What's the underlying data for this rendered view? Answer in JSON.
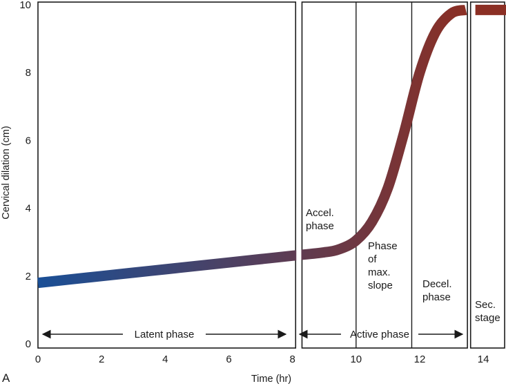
{
  "chart_data": {
    "type": "line",
    "title": "",
    "xlabel": "Time (hr)",
    "ylabel": "Cervical dilation (cm)",
    "panel_label": "A",
    "xlim": [
      0,
      14.8
    ],
    "ylim": [
      0,
      10
    ],
    "x_ticks": [
      0,
      2,
      4,
      6,
      8,
      10,
      12,
      14
    ],
    "y_ticks": [
      0,
      2,
      4,
      6,
      8,
      10
    ],
    "grid": false,
    "series": [
      {
        "x": [
          0,
          1,
          2,
          3,
          4,
          5,
          6,
          7,
          8,
          9,
          9.5,
          10,
          10.5,
          11,
          11.5,
          12,
          12.5,
          13,
          13.45
        ],
        "values": [
          1.8,
          1.9,
          2.0,
          2.1,
          2.2,
          2.3,
          2.4,
          2.5,
          2.6,
          2.7,
          2.8,
          3.05,
          3.6,
          4.6,
          6.2,
          8.0,
          9.2,
          9.75,
          9.85
        ],
        "color_start": "#1a4f96",
        "color_end": "#8b2f24"
      },
      {
        "name": "Sec. stage",
        "x": [
          13.75,
          14.75
        ],
        "values": [
          9.85,
          9.85
        ],
        "color": "#8b2f24"
      }
    ],
    "panels": [
      {
        "x_range": [
          0,
          8.1
        ]
      },
      {
        "x_range": [
          8.3,
          13.5
        ]
      },
      {
        "x_range": [
          13.6,
          14.8
        ]
      }
    ],
    "dividers_x": [
      10,
      11.75
    ],
    "annotations": {
      "latent_phase": "Latent phase",
      "active_phase": "Active phase",
      "accel_line1": "Accel.",
      "accel_line2": "phase",
      "maxslope_line1": "Phase",
      "maxslope_line2": "of",
      "maxslope_line3": "max.",
      "maxslope_line4": "slope",
      "decel_line1": "Decel.",
      "decel_line2": "phase",
      "sec_line1": "Sec.",
      "sec_line2": "stage"
    }
  }
}
